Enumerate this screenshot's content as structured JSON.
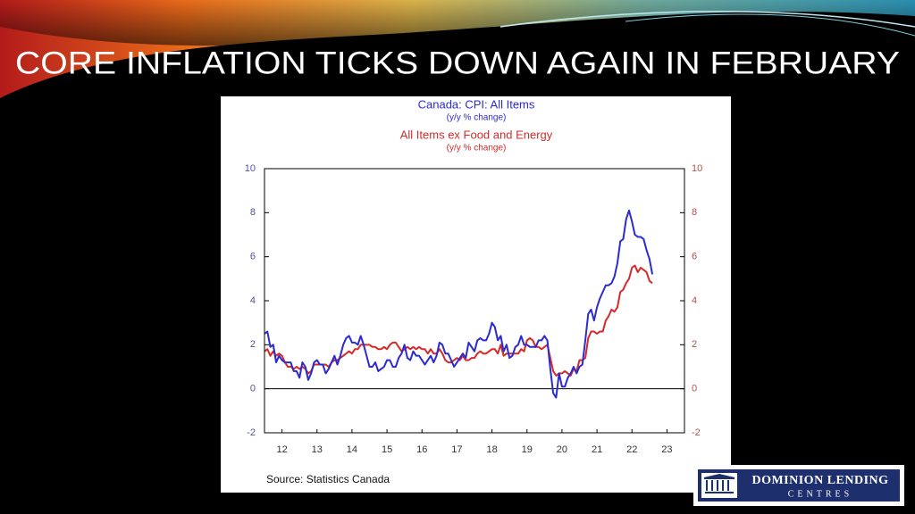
{
  "title": "CORE INFLATION TICKS DOWN AGAIN IN FEBRUARY",
  "logo": {
    "line1": "DOMINION LENDING",
    "line2": "CENTRES"
  },
  "chart_data": {
    "type": "line",
    "source": "Source:  Statistics Canada",
    "x": [
      12,
      12.083,
      12.167,
      12.25,
      12.333,
      12.417,
      12.5,
      12.583,
      12.667,
      12.75,
      12.833,
      12.917,
      13,
      13.083,
      13.167,
      13.25,
      13.333,
      13.417,
      13.5,
      13.583,
      13.667,
      13.75,
      13.833,
      13.917,
      14,
      14.083,
      14.167,
      14.25,
      14.333,
      14.417,
      14.5,
      14.583,
      14.667,
      14.75,
      14.833,
      14.917,
      15,
      15.083,
      15.167,
      15.25,
      15.333,
      15.417,
      15.5,
      15.583,
      15.667,
      15.75,
      15.833,
      15.917,
      16,
      16.083,
      16.167,
      16.25,
      16.333,
      16.417,
      16.5,
      16.583,
      16.667,
      16.75,
      16.833,
      16.917,
      17,
      17.083,
      17.167,
      17.25,
      17.333,
      17.417,
      17.5,
      17.583,
      17.667,
      17.75,
      17.833,
      17.917,
      18,
      18.083,
      18.167,
      18.25,
      18.333,
      18.417,
      18.5,
      18.583,
      18.667,
      18.75,
      18.833,
      18.917,
      19,
      19.083,
      19.167,
      19.25,
      19.333,
      19.417,
      19.5,
      19.583,
      19.667,
      19.75,
      19.833,
      19.917,
      20,
      20.083,
      20.167,
      20.25,
      20.333,
      20.417,
      20.5,
      20.583,
      20.667,
      20.75,
      20.833,
      20.917,
      21,
      21.083,
      21.167,
      21.25,
      21.333,
      21.417,
      21.5,
      21.583,
      21.667,
      21.75,
      21.833,
      21.917,
      22,
      22.083,
      22.167,
      22.25,
      22.333,
      22.417,
      22.5,
      22.583,
      22.667,
      22.75,
      22.833,
      22.917,
      23,
      23.083
    ],
    "series": [
      {
        "name": "Canada: CPI: All Items",
        "unit": "(y/y % change)",
        "color": "#2b2bd0",
        "values": [
          2.5,
          2.6,
          1.9,
          2.0,
          1.2,
          1.5,
          1.3,
          1.2,
          1.2,
          1.2,
          0.8,
          0.8,
          0.5,
          1.2,
          1.0,
          0.4,
          0.7,
          1.2,
          1.3,
          1.1,
          1.1,
          0.7,
          0.9,
          1.2,
          1.5,
          1.1,
          1.5,
          2.0,
          2.3,
          2.4,
          2.1,
          2.1,
          2.0,
          2.4,
          2.0,
          1.5,
          1.0,
          1.0,
          1.2,
          0.8,
          0.9,
          1.0,
          1.3,
          1.3,
          1.0,
          1.0,
          1.4,
          1.6,
          2.0,
          1.4,
          1.3,
          1.7,
          1.5,
          1.5,
          1.3,
          1.1,
          1.3,
          1.5,
          1.2,
          1.5,
          2.1,
          2.0,
          1.6,
          1.6,
          1.3,
          1.0,
          1.2,
          1.4,
          1.6,
          1.4,
          2.1,
          1.9,
          1.7,
          2.2,
          2.3,
          2.2,
          2.2,
          2.5,
          3.0,
          2.8,
          2.2,
          2.4,
          1.7,
          2.0,
          1.4,
          1.5,
          1.9,
          2.0,
          2.4,
          2.0,
          2.0,
          1.9,
          1.9,
          1.9,
          2.2,
          2.2,
          2.4,
          2.2,
          0.9,
          -0.2,
          -0.4,
          0.7,
          0.1,
          0.1,
          0.5,
          0.7,
          1.0,
          0.7,
          1.0,
          1.1,
          2.2,
          3.4,
          3.6,
          3.1,
          3.7,
          4.1,
          4.4,
          4.7,
          4.7,
          4.8,
          5.1,
          5.7,
          6.7,
          6.8,
          7.7,
          8.1,
          7.6,
          7.0,
          6.9,
          6.9,
          6.8,
          6.3,
          5.9,
          5.2
        ]
      },
      {
        "name": "All Items ex Food and Energy",
        "unit": "(y/y % change)",
        "color": "#d42a2a",
        "values": [
          1.7,
          1.8,
          1.5,
          1.7,
          1.5,
          1.6,
          1.5,
          1.2,
          1.0,
          1.0,
          0.9,
          1.0,
          0.9,
          1.0,
          0.9,
          0.7,
          0.8,
          1.1,
          1.1,
          1.1,
          1.1,
          1.1,
          1.0,
          1.2,
          1.3,
          1.3,
          1.4,
          1.5,
          1.6,
          1.7,
          1.6,
          1.8,
          1.8,
          2.0,
          2.0,
          2.0,
          2.0,
          1.9,
          1.9,
          1.8,
          1.8,
          1.9,
          1.8,
          2.0,
          2.1,
          2.1,
          1.9,
          1.7,
          1.8,
          1.9,
          1.8,
          1.9,
          1.8,
          1.9,
          1.8,
          1.8,
          1.6,
          1.8,
          1.6,
          1.6,
          1.8,
          1.6,
          1.3,
          1.2,
          1.2,
          1.3,
          1.4,
          1.3,
          1.5,
          1.3,
          1.3,
          1.4,
          1.4,
          1.6,
          1.7,
          1.6,
          1.6,
          1.7,
          1.8,
          1.8,
          1.6,
          2.0,
          1.5,
          1.6,
          1.6,
          1.6,
          1.6,
          1.6,
          1.8,
          1.7,
          2.2,
          2.3,
          2.2,
          1.9,
          1.9,
          1.8,
          1.9,
          2.0,
          1.4,
          0.8,
          0.6,
          0.7,
          0.7,
          0.8,
          0.7,
          0.6,
          0.9,
          0.8,
          1.3,
          1.3,
          1.4,
          2.3,
          2.6,
          2.6,
          2.5,
          2.6,
          2.6,
          3.1,
          3.3,
          3.6,
          3.5,
          3.7,
          4.4,
          4.5,
          4.8,
          5.0,
          5.5,
          5.6,
          5.3,
          5.5,
          5.4,
          5.3,
          4.9,
          4.8
        ]
      }
    ],
    "xlim": [
      12,
      24
    ],
    "xticks": [
      {
        "value": 12.5,
        "label": "12"
      },
      {
        "value": 13.5,
        "label": "13"
      },
      {
        "value": 14.5,
        "label": "14"
      },
      {
        "value": 15.5,
        "label": "15"
      },
      {
        "value": 16.5,
        "label": "16"
      },
      {
        "value": 17.5,
        "label": "17"
      },
      {
        "value": 18.5,
        "label": "18"
      },
      {
        "value": 19.5,
        "label": "19"
      },
      {
        "value": 20.5,
        "label": "20"
      },
      {
        "value": 21.5,
        "label": "21"
      },
      {
        "value": 22.5,
        "label": "22"
      },
      {
        "value": 23.5,
        "label": "23"
      }
    ],
    "ylim": [
      -2,
      10
    ],
    "yticks": [
      -2,
      0,
      2,
      4,
      6,
      8,
      10
    ],
    "y2lim": [
      -2,
      10
    ],
    "y2ticks": [
      -2,
      0,
      2,
      4,
      6,
      8,
      10
    ],
    "zero_line": true
  }
}
